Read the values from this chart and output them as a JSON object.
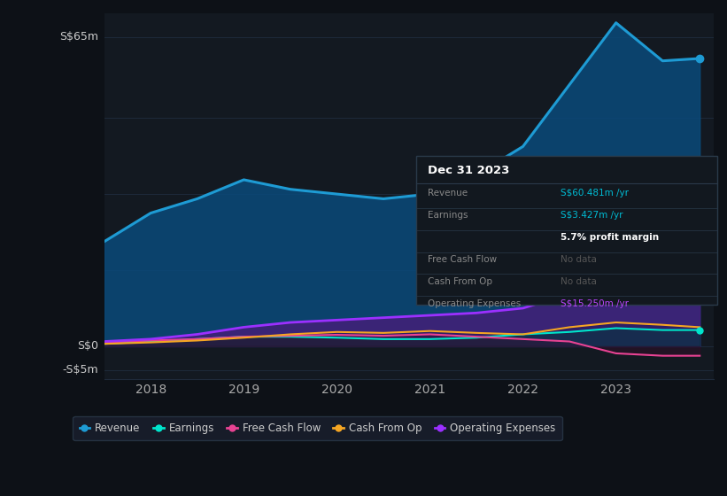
{
  "bg_color": "#0d1117",
  "panel_bg": "#131921",
  "grid_color": "#1e2a3a",
  "title_box": {
    "title": "Dec 31 2023",
    "rows": [
      {
        "label": "Revenue",
        "value": "S$60.481m /yr",
        "value_color": "#00bcd4",
        "label_color": "#888888"
      },
      {
        "label": "Earnings",
        "value": "S$3.427m /yr",
        "value_color": "#00bcd4",
        "label_color": "#888888"
      },
      {
        "label": "",
        "value": "5.7% profit margin",
        "value_color": "#ffffff",
        "label_color": "#888888"
      },
      {
        "label": "Free Cash Flow",
        "value": "No data",
        "value_color": "#555555",
        "label_color": "#888888"
      },
      {
        "label": "Cash From Op",
        "value": "No data",
        "value_color": "#555555",
        "label_color": "#888888"
      },
      {
        "label": "Operating Expenses",
        "value": "S$15.250m /yr",
        "value_color": "#bb44ff",
        "label_color": "#888888"
      }
    ]
  },
  "years": [
    2017.5,
    2018.0,
    2018.5,
    2019.0,
    2019.5,
    2020.0,
    2020.5,
    2021.0,
    2021.5,
    2022.0,
    2022.5,
    2023.0,
    2023.5,
    2023.9
  ],
  "revenue": [
    22,
    28,
    31,
    35,
    33,
    32,
    31,
    32,
    36,
    42,
    55,
    68,
    60,
    60.5
  ],
  "earnings": [
    0.5,
    1.0,
    1.5,
    2.0,
    2.0,
    1.8,
    1.5,
    1.5,
    1.8,
    2.5,
    3.0,
    3.8,
    3.4,
    3.4
  ],
  "free_cash_flow": [
    0.8,
    1.2,
    1.5,
    2.0,
    2.2,
    2.4,
    2.2,
    2.5,
    2.0,
    1.5,
    1.0,
    -1.5,
    -2.0,
    -2.0
  ],
  "cash_from_op": [
    0.5,
    0.8,
    1.2,
    1.8,
    2.5,
    3.0,
    2.8,
    3.2,
    2.8,
    2.5,
    4.0,
    5.0,
    4.5,
    4.0
  ],
  "op_expenses": [
    1.0,
    1.5,
    2.5,
    4.0,
    5.0,
    5.5,
    6.0,
    6.5,
    7.0,
    8.0,
    11.0,
    15.0,
    15.3,
    15.3
  ],
  "revenue_color": "#1e9bd4",
  "earnings_color": "#00e5cc",
  "fcf_color": "#e84393",
  "cashop_color": "#f5a623",
  "opex_color": "#9b30ff",
  "revenue_fill": "#0a4a7a",
  "opex_fill": "#4a1a7a",
  "ylabel_ss65": "S$65m",
  "ylabel_ss0": "S$0",
  "ylabel_neg5": "-S$5m",
  "ylim_min": -7,
  "ylim_max": 70,
  "xticks": [
    2018,
    2019,
    2020,
    2021,
    2022,
    2023
  ],
  "legend_items": [
    {
      "label": "Revenue",
      "color": "#1e9bd4"
    },
    {
      "label": "Earnings",
      "color": "#00e5cc"
    },
    {
      "label": "Free Cash Flow",
      "color": "#e84393"
    },
    {
      "label": "Cash From Op",
      "color": "#f5a623"
    },
    {
      "label": "Operating Expenses",
      "color": "#9b30ff"
    }
  ]
}
